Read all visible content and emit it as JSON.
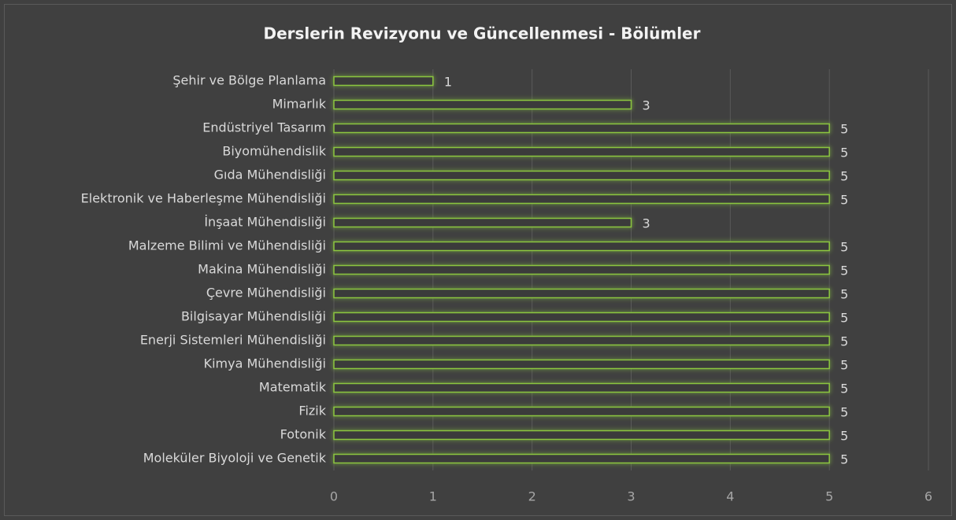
{
  "chart_data": {
    "type": "bar",
    "orientation": "horizontal",
    "title": "Derslerin Revizyonu ve Güncellenmesi - Bölümler",
    "categories": [
      "Şehir ve Bölge Planlama",
      "Mimarlık",
      "Endüstriyel Tasarım",
      "Biyomühendislik",
      "Gıda Mühendisliği",
      "Elektronik ve Haberleşme Mühendisliği",
      "İnşaat Mühendisliği",
      "Malzeme Bilimi ve Mühendisliği",
      "Makina Mühendisliği",
      "Çevre Mühendisliği",
      "Bilgisayar Mühendisliği",
      "Enerji Sistemleri Mühendisliği",
      "Kimya Mühendisliği",
      "Matematik",
      "Fizik",
      "Fotonik",
      "Moleküler Biyoloji ve Genetik"
    ],
    "values": [
      1,
      3,
      5,
      5,
      5,
      5,
      3,
      5,
      5,
      5,
      5,
      5,
      5,
      5,
      5,
      5,
      5
    ],
    "color": "#8cc63f",
    "xlim": [
      0,
      6
    ],
    "xticks": [
      0,
      1,
      2,
      3,
      4,
      5,
      6
    ],
    "grid": true
  }
}
